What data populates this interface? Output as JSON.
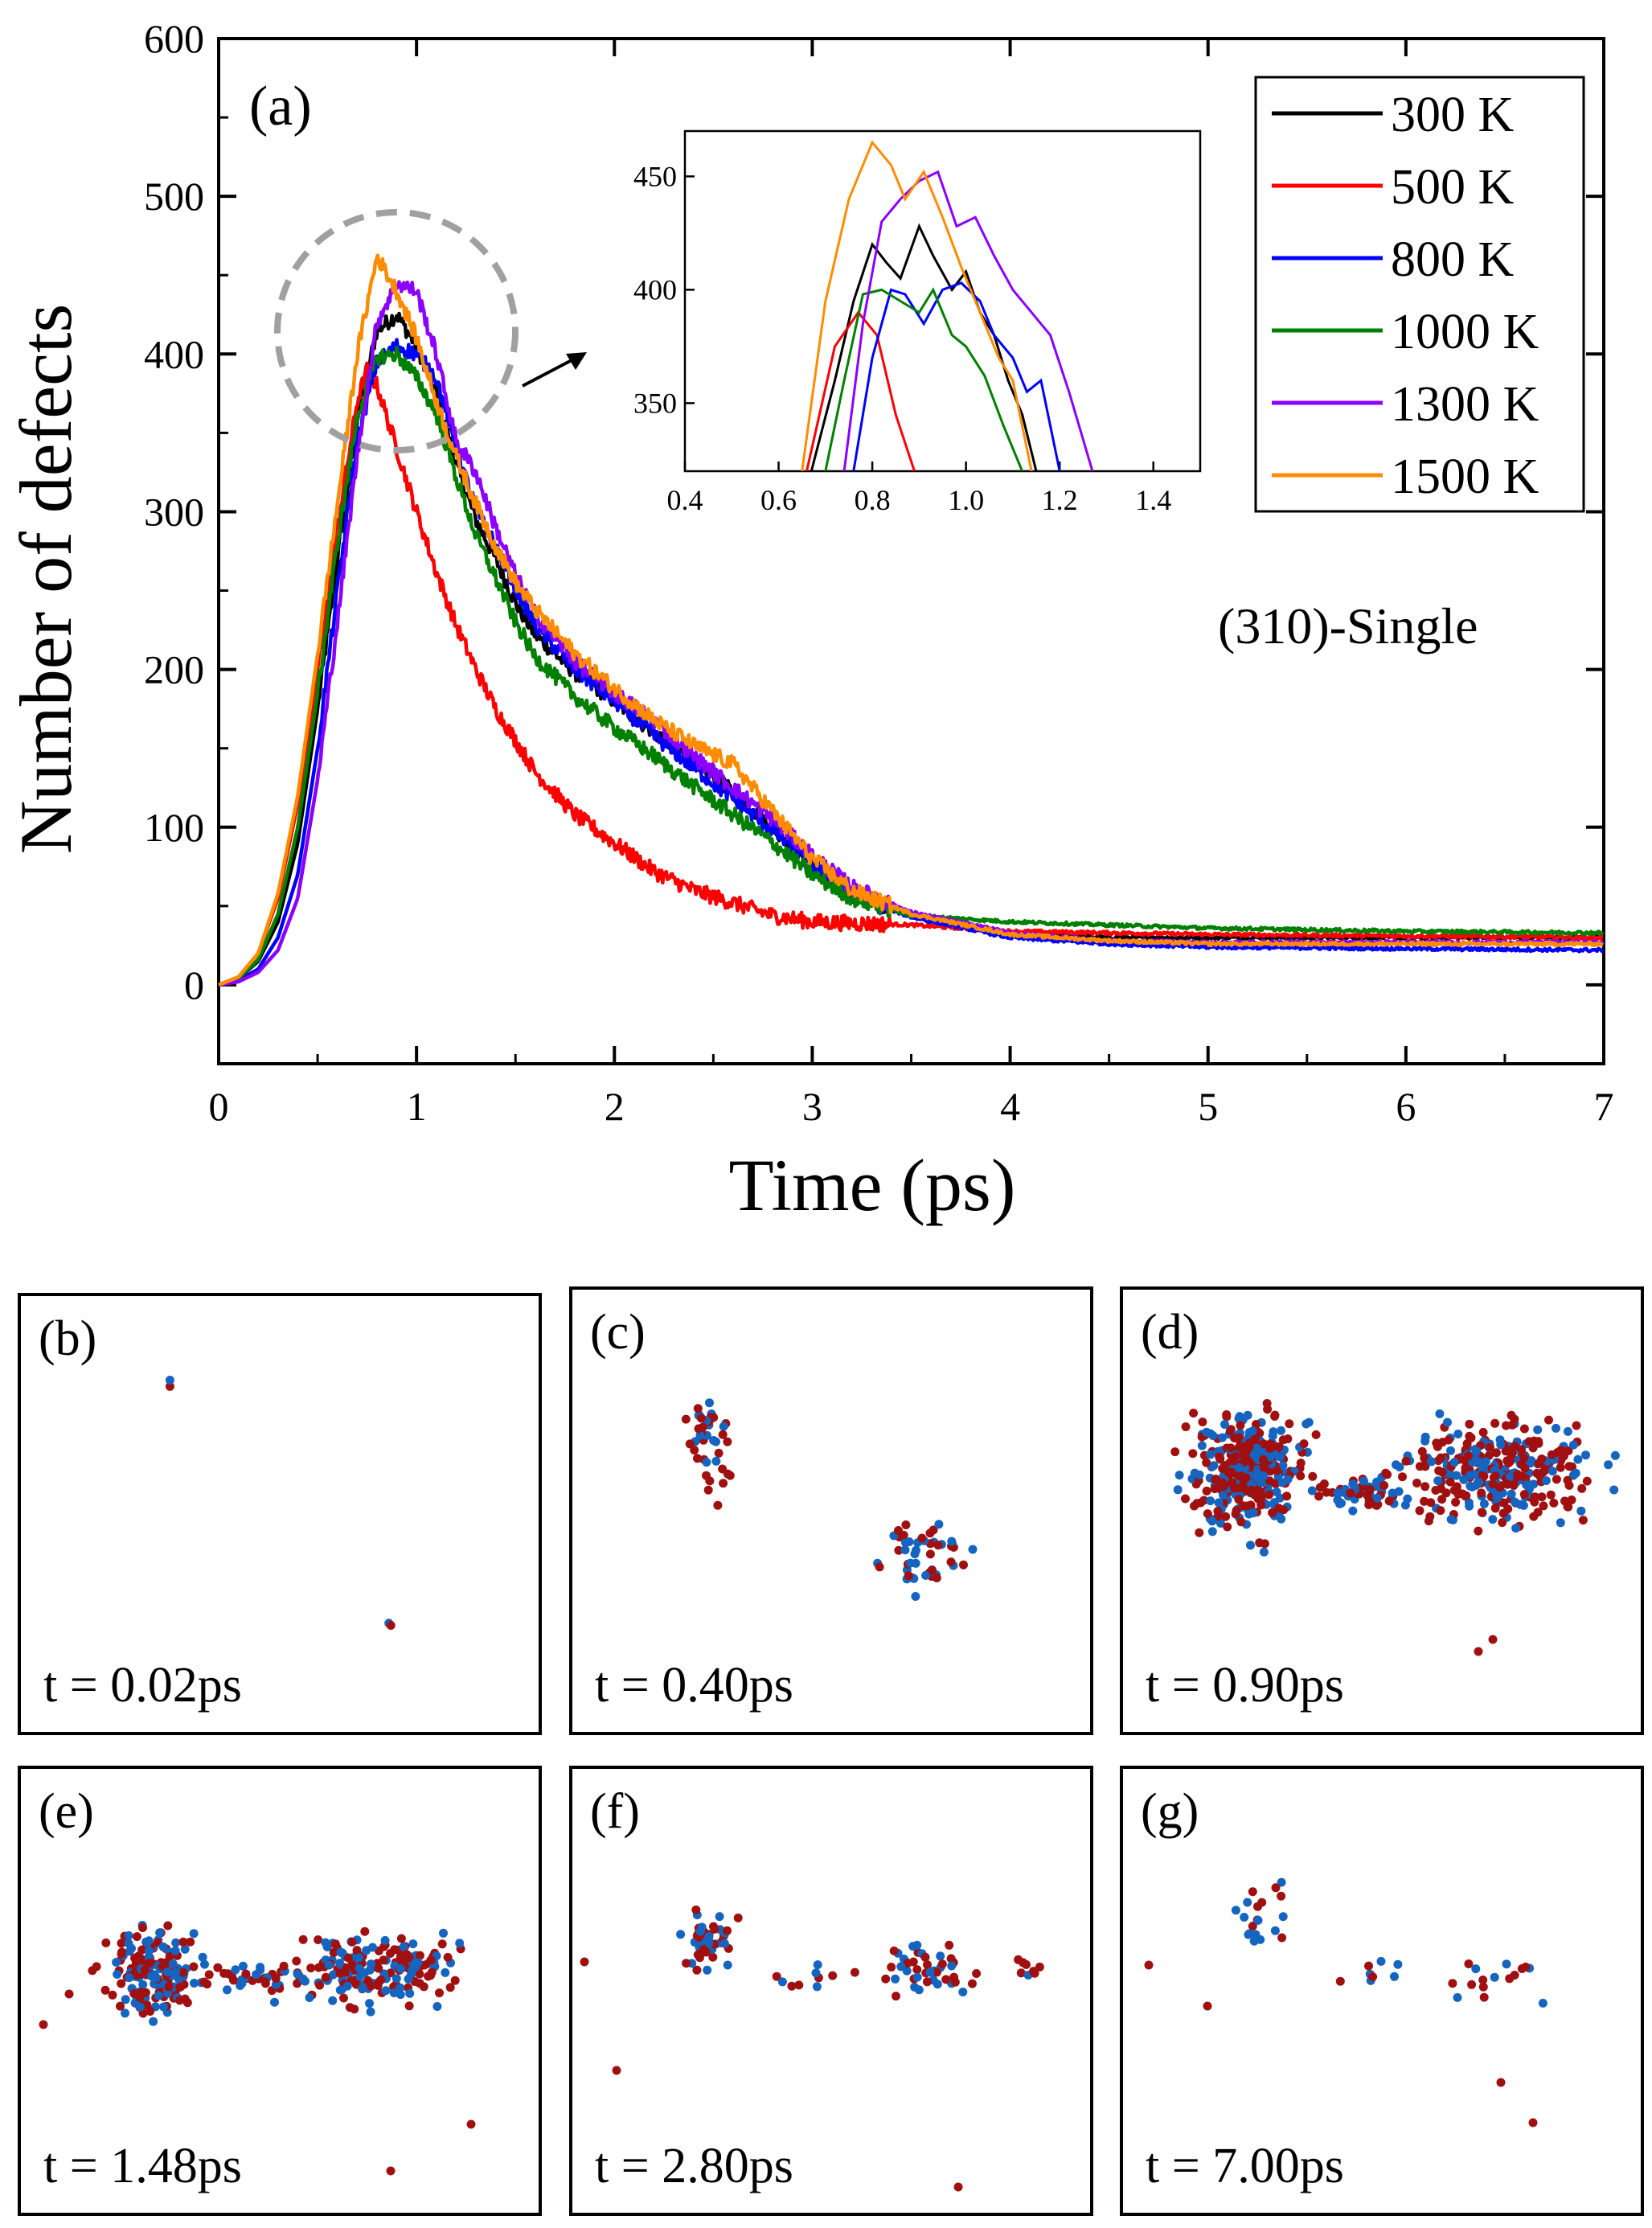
{
  "chart_data": {
    "type": "line",
    "panel_label": "(a)",
    "annotation": "(310)-Single",
    "xlabel": "Time (ps)",
    "ylabel": "Number of defects",
    "xlim": [
      0,
      7
    ],
    "ylim": [
      -50,
      600
    ],
    "xticks": [
      0,
      1,
      2,
      3,
      4,
      5,
      6,
      7
    ],
    "yticks": [
      0,
      100,
      200,
      300,
      400,
      500,
      600
    ],
    "legend_position": "top-right",
    "series": [
      {
        "name": "300 K",
        "color": "#000000",
        "x": [
          0,
          0.1,
          0.2,
          0.3,
          0.4,
          0.5,
          0.6,
          0.7,
          0.8,
          0.9,
          1.0,
          1.1,
          1.2,
          1.3,
          1.4,
          1.5,
          1.6,
          1.8,
          2.0,
          2.2,
          2.4,
          2.6,
          2.8,
          3.0,
          3.2,
          3.5,
          4.0,
          4.5,
          5.0,
          6.0,
          7.0
        ],
        "y": [
          0,
          4,
          15,
          40,
          90,
          175,
          270,
          360,
          415,
          425,
          405,
          375,
          330,
          295,
          270,
          242,
          222,
          198,
          180,
          160,
          142,
          122,
          100,
          77,
          58,
          45,
          32,
          30,
          30,
          30,
          30
        ]
      },
      {
        "name": "500 K",
        "color": "#ff0000",
        "x": [
          0,
          0.1,
          0.2,
          0.3,
          0.4,
          0.5,
          0.6,
          0.7,
          0.75,
          0.8,
          0.9,
          1.0,
          1.1,
          1.2,
          1.3,
          1.4,
          1.5,
          1.6,
          1.8,
          2.0,
          2.2,
          2.4,
          2.6,
          2.8,
          3.0,
          3.5,
          4.0,
          5.0,
          6.0,
          7.0
        ],
        "y": [
          0,
          5,
          20,
          55,
          115,
          200,
          290,
          370,
          390,
          380,
          340,
          300,
          262,
          228,
          200,
          175,
          155,
          135,
          108,
          90,
          72,
          60,
          52,
          44,
          40,
          38,
          34,
          32,
          31,
          30
        ]
      },
      {
        "name": "800 K",
        "color": "#0000ff",
        "x": [
          0,
          0.1,
          0.2,
          0.3,
          0.4,
          0.5,
          0.6,
          0.7,
          0.8,
          0.9,
          1.0,
          1.1,
          1.2,
          1.3,
          1.4,
          1.5,
          1.6,
          1.8,
          2.0,
          2.2,
          2.4,
          2.6,
          2.8,
          3.0,
          3.2,
          3.5,
          4.0,
          4.5,
          5.0,
          6.0,
          7.0
        ],
        "y": [
          0,
          3,
          10,
          30,
          70,
          150,
          250,
          345,
          395,
          405,
          400,
          385,
          340,
          302,
          278,
          252,
          228,
          200,
          180,
          158,
          138,
          118,
          98,
          75,
          57,
          43,
          30,
          26,
          24,
          23,
          22
        ]
      },
      {
        "name": "1000 K",
        "color": "#008000",
        "x": [
          0,
          0.1,
          0.2,
          0.3,
          0.4,
          0.5,
          0.6,
          0.7,
          0.8,
          0.9,
          1.0,
          1.1,
          1.2,
          1.3,
          1.4,
          1.5,
          1.6,
          1.8,
          2.0,
          2.2,
          2.4,
          2.6,
          2.8,
          3.0,
          3.2,
          3.5,
          4.0,
          4.5,
          5.0,
          6.0,
          7.0
        ],
        "y": [
          0,
          4,
          16,
          45,
          100,
          185,
          280,
          360,
          398,
          400,
          385,
          362,
          322,
          285,
          258,
          230,
          208,
          183,
          163,
          145,
          126,
          108,
          90,
          70,
          55,
          44,
          40,
          38,
          36,
          34,
          33
        ]
      },
      {
        "name": "1300 K",
        "color": "#8b00ff",
        "x": [
          0,
          0.1,
          0.2,
          0.3,
          0.4,
          0.5,
          0.6,
          0.7,
          0.8,
          0.9,
          1.0,
          1.1,
          1.2,
          1.3,
          1.4,
          1.5,
          1.6,
          1.8,
          2.0,
          2.2,
          2.4,
          2.6,
          2.8,
          3.0,
          3.2,
          3.5,
          4.0,
          4.5,
          5.0,
          6.0,
          7.0
        ],
        "y": [
          0,
          2,
          8,
          22,
          55,
          130,
          230,
          335,
          420,
          445,
          440,
          400,
          345,
          325,
          290,
          260,
          235,
          205,
          185,
          168,
          145,
          125,
          105,
          82,
          62,
          46,
          33,
          28,
          27,
          27,
          27
        ]
      },
      {
        "name": "1500 K",
        "color": "#ff8c00",
        "x": [
          0,
          0.1,
          0.2,
          0.3,
          0.4,
          0.5,
          0.6,
          0.7,
          0.8,
          0.9,
          1.0,
          1.1,
          1.2,
          1.3,
          1.4,
          1.5,
          1.6,
          1.8,
          2.0,
          2.2,
          2.4,
          2.6,
          2.8,
          3.0,
          3.2,
          3.5,
          4.0,
          4.5,
          5.0,
          6.0,
          7.0
        ],
        "y": [
          0,
          5,
          20,
          58,
          120,
          210,
          305,
          400,
          462,
          440,
          410,
          370,
          335,
          305,
          278,
          255,
          238,
          210,
          188,
          168,
          152,
          140,
          110,
          80,
          60,
          45,
          32,
          28,
          26,
          26,
          26
        ]
      }
    ],
    "inset": {
      "xlim": [
        0.4,
        1.5
      ],
      "ylim": [
        320,
        470
      ],
      "xticks": [
        0.4,
        0.6,
        0.8,
        1.0,
        1.2,
        1.4
      ],
      "xtick_labels": [
        "0.4",
        "0.6",
        "0.8",
        "1.0",
        "1.2",
        "1.4"
      ],
      "yticks": [
        350,
        400,
        450
      ],
      "series": [
        {
          "name": "300 K",
          "x": [
            0.67,
            0.72,
            0.76,
            0.8,
            0.83,
            0.86,
            0.9,
            0.93,
            0.97,
            1.0,
            1.03,
            1.06,
            1.09,
            1.12,
            1.15
          ],
          "y": [
            320,
            360,
            395,
            420,
            412,
            405,
            428,
            415,
            400,
            408,
            390,
            380,
            360,
            345,
            320
          ]
        },
        {
          "name": "500 K",
          "x": [
            0.66,
            0.72,
            0.77,
            0.81,
            0.85,
            0.89
          ],
          "y": [
            320,
            375,
            390,
            380,
            345,
            320
          ]
        },
        {
          "name": "800 K",
          "x": [
            0.76,
            0.8,
            0.84,
            0.87,
            0.91,
            0.95,
            0.99,
            1.03,
            1.06,
            1.1,
            1.13,
            1.16,
            1.2
          ],
          "y": [
            320,
            370,
            400,
            398,
            385,
            400,
            403,
            395,
            380,
            370,
            355,
            360,
            320
          ]
        },
        {
          "name": "1000 K",
          "x": [
            0.7,
            0.74,
            0.78,
            0.82,
            0.86,
            0.9,
            0.93,
            0.97,
            1.0,
            1.04,
            1.08,
            1.12
          ],
          "y": [
            320,
            360,
            398,
            400,
            395,
            390,
            400,
            380,
            375,
            362,
            340,
            320
          ]
        },
        {
          "name": "1300 K",
          "x": [
            0.74,
            0.78,
            0.82,
            0.86,
            0.9,
            0.94,
            0.98,
            1.02,
            1.06,
            1.1,
            1.14,
            1.18,
            1.22,
            1.27
          ],
          "y": [
            320,
            385,
            430,
            440,
            448,
            452,
            428,
            432,
            415,
            400,
            390,
            380,
            355,
            320
          ]
        },
        {
          "name": "1500 K",
          "x": [
            0.65,
            0.7,
            0.75,
            0.8,
            0.84,
            0.87,
            0.91,
            0.95,
            0.99,
            1.03,
            1.07,
            1.1,
            1.14
          ],
          "y": [
            320,
            395,
            440,
            465,
            455,
            440,
            452,
            432,
            410,
            390,
            370,
            360,
            320
          ]
        }
      ]
    }
  },
  "snapshots": [
    {
      "label": "(b)",
      "time": "t = 0.02ps"
    },
    {
      "label": "(c)",
      "time": "t = 0.40ps"
    },
    {
      "label": "(d)",
      "time": "t = 0.90ps"
    },
    {
      "label": "(e)",
      "time": "t = 1.48ps"
    },
    {
      "label": "(f)",
      "time": "t = 2.80ps"
    },
    {
      "label": "(g)",
      "time": "t = 7.00ps"
    }
  ],
  "colors": {
    "vacancy": "#1565c0",
    "interstitial": "#a01010",
    "dashed_circle": "#a0a0a0"
  }
}
